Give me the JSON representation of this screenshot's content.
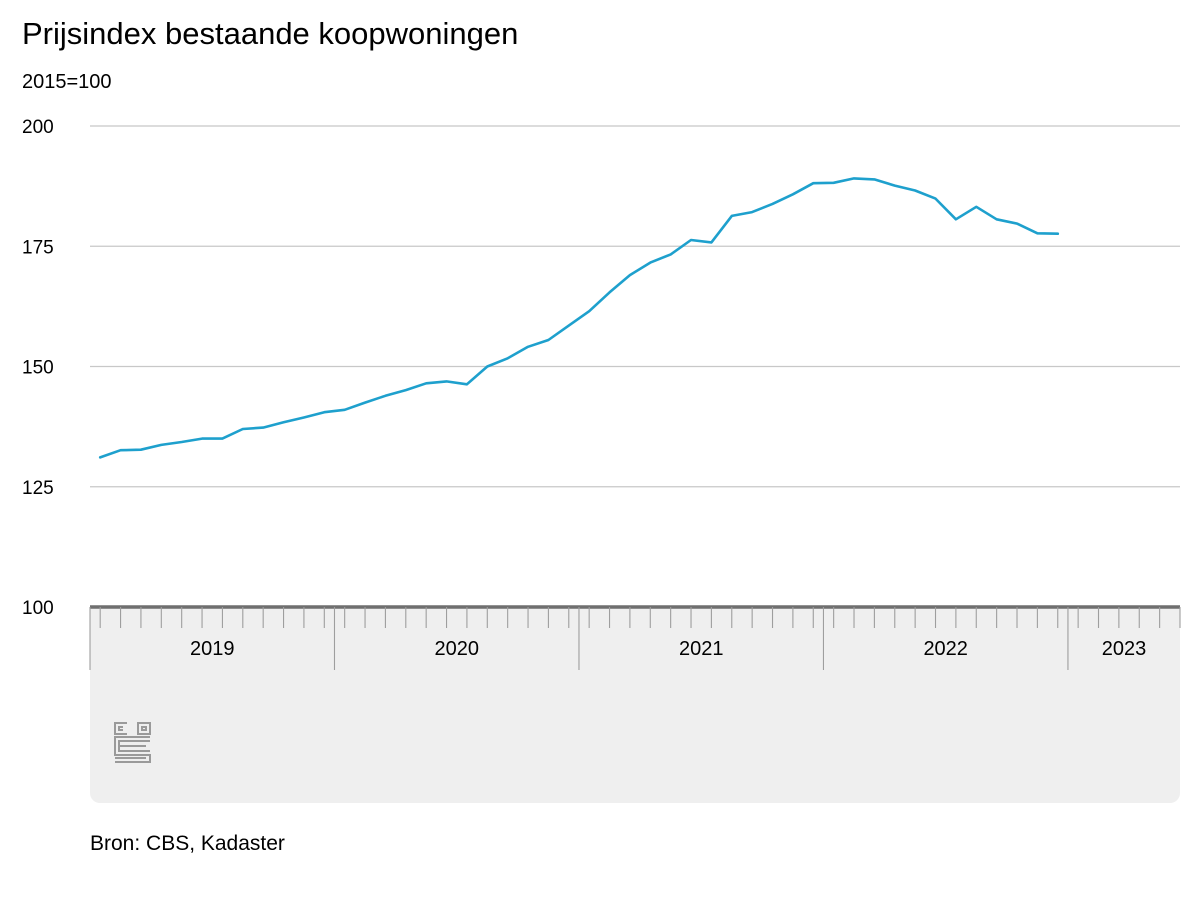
{
  "chart": {
    "title": "Prijsindex bestaande koopwoningen",
    "subtitle": "2015=100",
    "source": "Bron: CBS, Kadaster",
    "logo_icon": "cbs-logo-icon"
  },
  "chart_data": {
    "type": "line",
    "title": "Prijsindex bestaande koopwoningen",
    "ylabel": "2015=100",
    "ylim": [
      100,
      200
    ],
    "yticks": [
      100,
      125,
      150,
      175,
      200
    ],
    "x_start": "2019-01",
    "x_end": "2023-06",
    "years": [
      "2019",
      "2020",
      "2021",
      "2022",
      "2023"
    ],
    "grid": true,
    "line_color": "#1ea0cd",
    "series": [
      {
        "values": [
          131.1,
          132.6,
          132.7,
          133.7,
          134.3,
          135.0,
          135.0,
          137.0,
          137.3,
          138.4,
          139.4,
          140.5,
          141.0,
          142.5,
          143.9,
          145.1,
          146.5,
          146.9,
          146.3,
          150.0,
          151.7,
          154.1,
          155.5,
          158.5,
          161.5,
          165.4,
          169.0,
          171.6,
          173.3,
          176.3,
          175.8,
          181.3,
          182.1,
          183.8,
          185.8,
          188.1,
          188.2,
          189.1,
          188.9,
          187.6,
          186.6,
          184.9,
          180.6,
          183.2,
          180.6,
          179.7,
          177.7,
          177.6
        ]
      }
    ]
  }
}
